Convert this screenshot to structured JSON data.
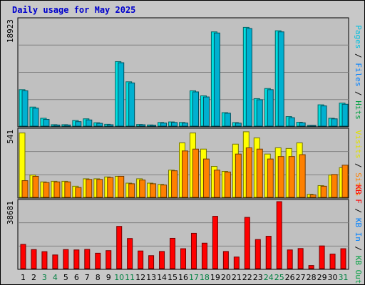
{
  "title": "Daily usage for May 2025",
  "chart_data": [
    {
      "type": "bar",
      "name_parts": [
        {
          "text": "Pages",
          "color": "#00c0e0"
        },
        {
          "text": " / ",
          "color": "#000000"
        },
        {
          "text": "Files",
          "color": "#0080ff"
        },
        {
          "text": " / ",
          "color": "#000000"
        },
        {
          "text": "Hits",
          "color": "#00a040"
        }
      ],
      "ymax_label": "18923",
      "ylim": [
        0,
        18923
      ],
      "categories": [
        "1",
        "2",
        "3",
        "4",
        "5",
        "6",
        "7",
        "8",
        "9",
        "10",
        "11",
        "12",
        "13",
        "14",
        "15",
        "16",
        "17",
        "18",
        "19",
        "20",
        "21",
        "22",
        "23",
        "24",
        "25",
        "26",
        "27",
        "28",
        "29",
        "30",
        "31"
      ],
      "series": [
        {
          "color": "#00e0e0",
          "values": [
            6500,
            3400,
            1400,
            260,
            260,
            1000,
            1300,
            600,
            330,
            11500,
            7900,
            300,
            210,
            650,
            750,
            650,
            6300,
            5400,
            16800,
            2400,
            630,
            17600,
            4900,
            6700,
            17000,
            1700,
            690,
            130,
            3800,
            1400,
            4100
          ]
        },
        {
          "color": "#00b0d0",
          "values": [
            6300,
            3200,
            1200,
            200,
            200,
            800,
            1100,
            500,
            250,
            11300,
            7700,
            250,
            160,
            550,
            650,
            550,
            6100,
            5200,
            16600,
            2300,
            530,
            17400,
            4700,
            6500,
            16800,
            1500,
            590,
            100,
            3600,
            1300,
            3900
          ]
        }
      ]
    },
    {
      "type": "bar",
      "name_parts": [
        {
          "text": "Visits",
          "color": "#e0e000"
        },
        {
          "text": " / ",
          "color": "#000000"
        },
        {
          "text": "Sites",
          "color": "#ff8000"
        }
      ],
      "ymax_label": "541",
      "ylim": [
        0,
        541
      ],
      "series": [
        {
          "color": "#ffff00",
          "values": [
            520,
            180,
            125,
            130,
            130,
            90,
            150,
            150,
            165,
            170,
            115,
            150,
            115,
            105,
            220,
            440,
            520,
            390,
            250,
            210,
            430,
            530,
            480,
            350,
            400,
            395,
            440,
            25,
            95,
            180,
            240
          ]
        },
        {
          "color": "#ff8000",
          "values": [
            135,
            170,
            120,
            125,
            125,
            80,
            145,
            145,
            160,
            170,
            110,
            140,
            110,
            100,
            215,
            375,
            390,
            310,
            220,
            205,
            350,
            400,
            390,
            310,
            330,
            330,
            345,
            20,
            90,
            185,
            260
          ]
        }
      ]
    },
    {
      "type": "bar",
      "name_parts": [
        {
          "text": "KB F",
          "color": "#ff0000"
        },
        {
          "text": " / ",
          "color": "#000000"
        },
        {
          "text": "KB In",
          "color": "#0080ff"
        },
        {
          "text": " / ",
          "color": "#000000"
        },
        {
          "text": "KB Out",
          "color": "#00a040"
        }
      ],
      "ymax_label": "38681",
      "ylim": [
        0,
        38681
      ],
      "series": [
        {
          "color": "#ff0000",
          "values": [
            14000,
            11000,
            9800,
            7900,
            11000,
            10800,
            11100,
            8900,
            10400,
            24400,
            17400,
            10200,
            7500,
            9900,
            17500,
            11500,
            20400,
            14700,
            30200,
            9900,
            6700,
            29600,
            16800,
            18700,
            38681,
            10800,
            11600,
            1800,
            13100,
            8400,
            11500
          ]
        }
      ]
    }
  ],
  "day_labels": {
    "highlight_days": [
      "3",
      "4",
      "10",
      "11",
      "17",
      "18",
      "24",
      "25",
      "31"
    ],
    "highlight_color": "#008040",
    "normal_color": "#000000"
  }
}
